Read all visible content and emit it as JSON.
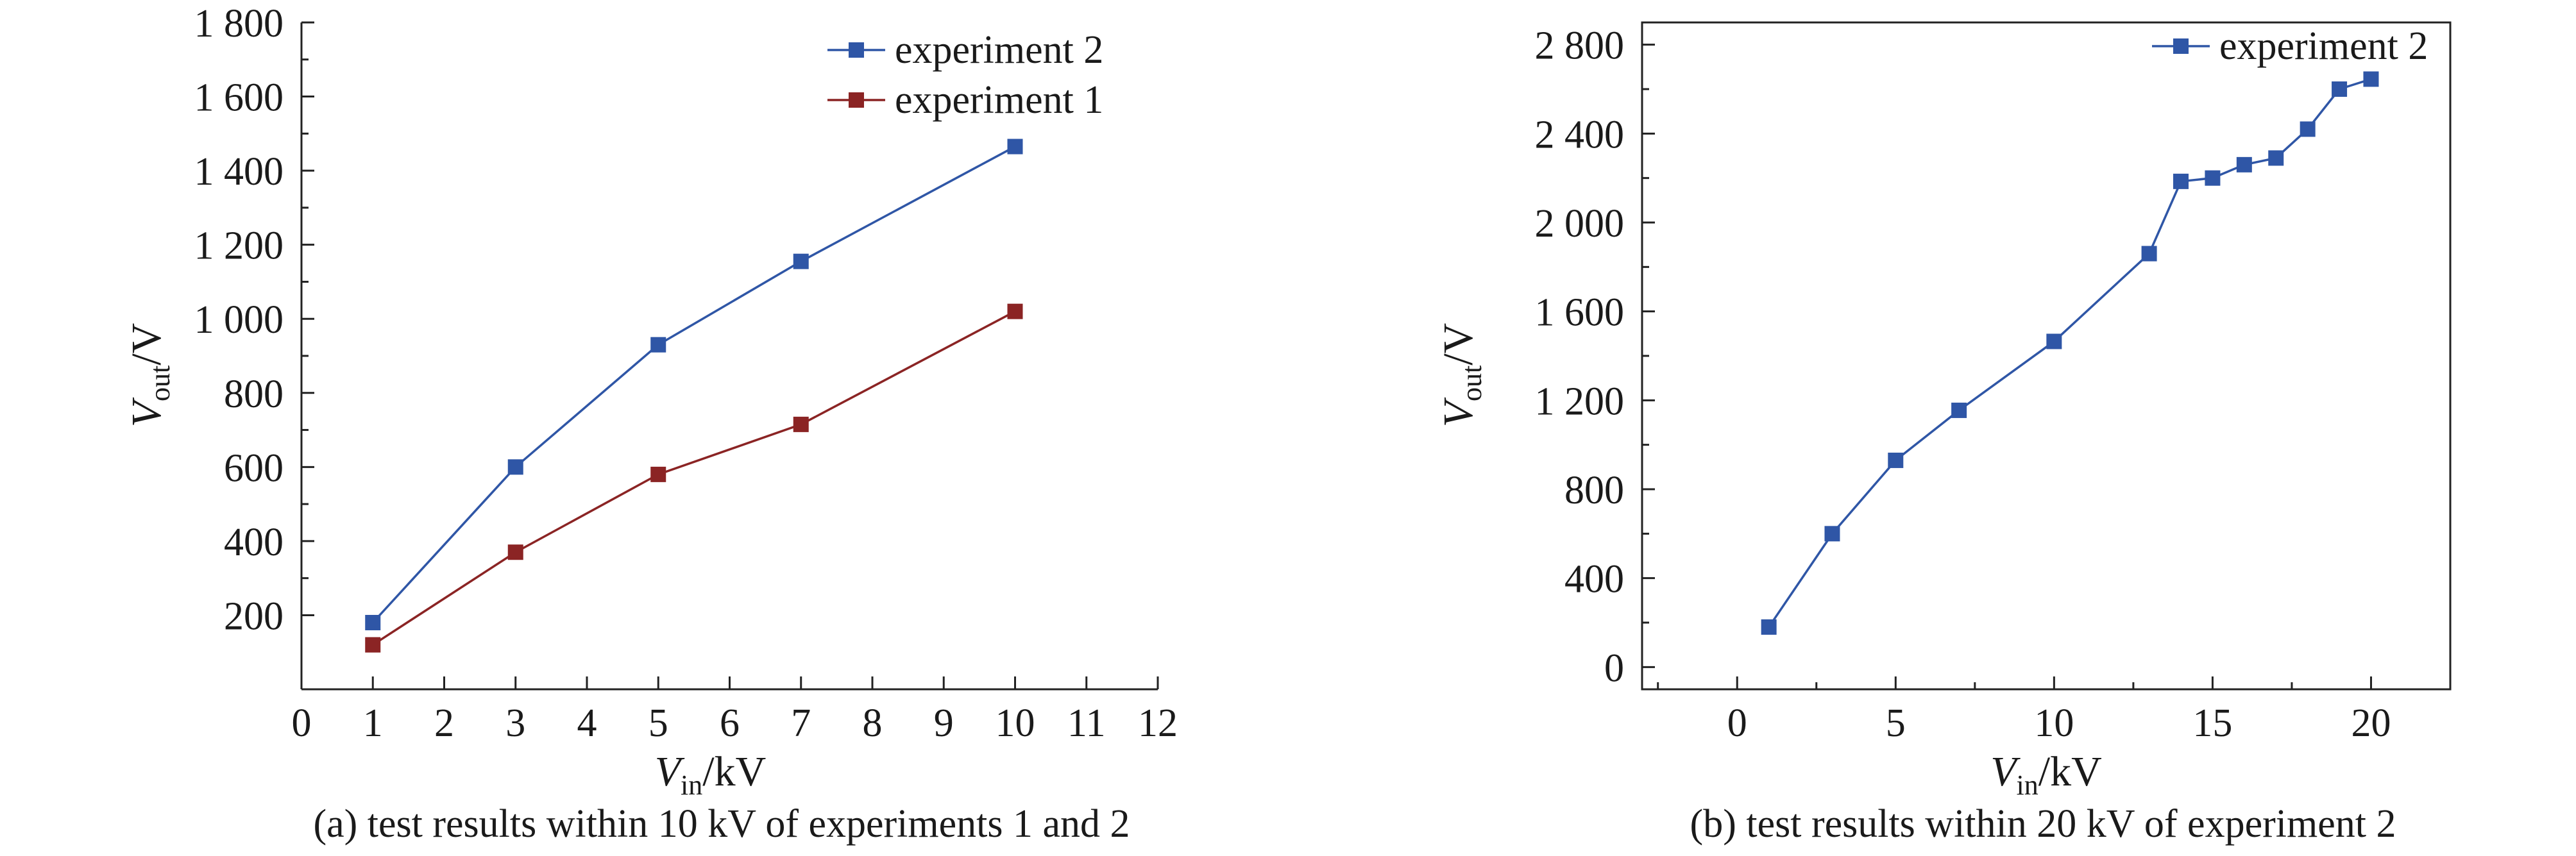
{
  "chart_data": [
    {
      "type": "line",
      "caption": "(a) test results within 10 kV of experiments 1 and 2",
      "xlabel": {
        "main": "V",
        "sub": "in",
        "unit": "/kV"
      },
      "ylabel": {
        "main": "V",
        "sub": "out",
        "unit": "/V"
      },
      "xlim": [
        0,
        12
      ],
      "ylim": [
        0,
        1800
      ],
      "xticks": [
        "0",
        "1",
        "2",
        "3",
        "4",
        "5",
        "6",
        "7",
        "8",
        "9",
        "10",
        "11",
        "12"
      ],
      "yticks": [
        "200",
        "400",
        "600",
        "800",
        "1 000",
        "1 200",
        "1 400",
        "1 600",
        "1 800"
      ],
      "xtick_values": [
        0,
        1,
        2,
        3,
        4,
        5,
        6,
        7,
        8,
        9,
        10,
        11,
        12
      ],
      "ytick_values": [
        200,
        400,
        600,
        800,
        1000,
        1200,
        1400,
        1600,
        1800
      ],
      "legend_position": "top-right",
      "series": [
        {
          "name": "experiment 2",
          "color": "#2f56a6",
          "x": [
            1,
            3,
            5,
            7,
            10
          ],
          "y": [
            180,
            600,
            930,
            1155,
            1465
          ]
        },
        {
          "name": "experiment 1",
          "color": "#8b2424",
          "x": [
            1,
            3,
            5,
            7,
            10
          ],
          "y": [
            120,
            370,
            580,
            715,
            1020
          ]
        }
      ]
    },
    {
      "type": "line",
      "caption": "(b) test results within 20 kV of experiment 2",
      "xlabel": {
        "main": "V",
        "sub": "in",
        "unit": "/kV"
      },
      "ylabel": {
        "main": "V",
        "sub": "out",
        "unit": "/V"
      },
      "xlim": [
        -3,
        22.5
      ],
      "ylim": [
        -100,
        2900
      ],
      "xticks": [
        "0",
        "5",
        "10",
        "15",
        "20"
      ],
      "yticks": [
        "0",
        "400",
        "800",
        "1 200",
        "1 600",
        "2 000",
        "2 400",
        "2 800"
      ],
      "xtick_values": [
        0,
        5,
        10,
        15,
        20
      ],
      "ytick_values": [
        0,
        400,
        800,
        1200,
        1600,
        2000,
        2400,
        2800
      ],
      "legend_position": "top-right",
      "series": [
        {
          "name": "experiment 2",
          "color": "#2f56a6",
          "x": [
            1,
            3,
            5,
            7,
            10,
            13,
            14,
            15,
            16,
            17,
            18,
            19,
            20
          ],
          "y": [
            180,
            600,
            930,
            1155,
            1465,
            1860,
            2185,
            2200,
            2260,
            2290,
            2420,
            2600,
            2645
          ]
        }
      ]
    }
  ]
}
